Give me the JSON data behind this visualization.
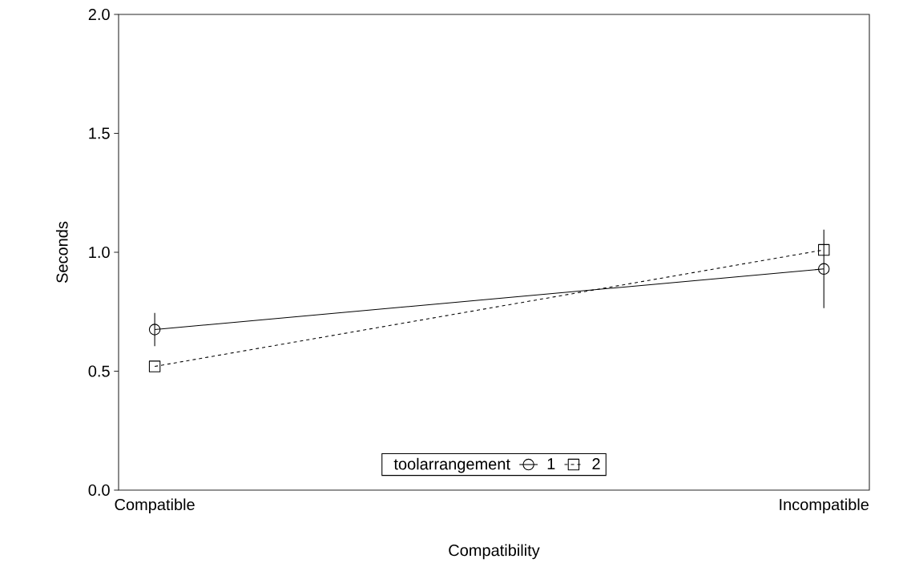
{
  "chart_data": {
    "type": "line",
    "xlabel": "Compatibility",
    "ylabel": "Seconds",
    "legend_title": "toolarrangement",
    "categories": [
      "Compatible",
      "Incompatible"
    ],
    "series": [
      {
        "name": "1",
        "color": "#000000",
        "values": [
          0.675,
          0.93
        ],
        "errors": [
          0.07,
          0.165
        ],
        "marker": "circle",
        "line_style": "solid"
      },
      {
        "name": "2",
        "color": "#000000",
        "values": [
          0.52,
          1.01
        ],
        "marker": "square",
        "line_style": "dashed"
      }
    ],
    "ylim": [
      0,
      2
    ],
    "yticks": [
      {
        "value": 0,
        "label": "0.0"
      },
      0.5,
      {
        "value": 1,
        "label": "1.0"
      },
      1.5,
      {
        "value": 2,
        "label": "2.0"
      }
    ],
    "legend": "bottom",
    "grid": false
  }
}
